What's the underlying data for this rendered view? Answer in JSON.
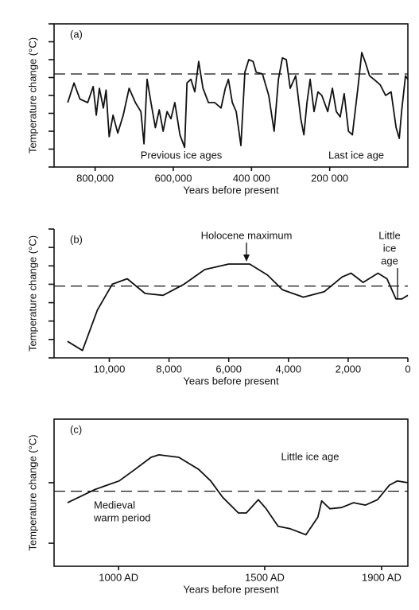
{
  "chart_data": [
    {
      "type": "line",
      "panel_label": "(a)",
      "x_label": "Years before present",
      "y_label": "Temperature change (°C)",
      "frame": true,
      "xlim": [
        905000,
        0
      ],
      "ylim": [
        0,
        8
      ],
      "xticks": [
        {
          "value": 800000,
          "label": "800,000"
        },
        {
          "value": 600000,
          "label": "600,000"
        },
        {
          "value": 400000,
          "label": "400 000"
        },
        {
          "value": 200000,
          "label": "200 000"
        }
      ],
      "yticks": [
        0,
        1,
        2,
        3,
        4,
        5,
        6,
        7,
        8
      ],
      "reference": 5.2,
      "color": "#111111",
      "annotations": [
        "Previous ice ages",
        "Last ice age"
      ],
      "x": [
        870000,
        854000,
        839000,
        819000,
        805000,
        797000,
        789000,
        779000,
        772000,
        764000,
        754000,
        742000,
        728000,
        713000,
        697000,
        683000,
        675000,
        667000,
        657000,
        646000,
        636000,
        626000,
        616000,
        606000,
        596000,
        583000,
        571000,
        565000,
        555000,
        545000,
        535000,
        524000,
        510000,
        494000,
        478000,
        467000,
        459000,
        449000,
        439000,
        427000,
        417000,
        407000,
        396000,
        388000,
        372000,
        356000,
        342000,
        331000,
        321000,
        311000,
        301000,
        287000,
        274000,
        266000,
        258000,
        250000,
        240000,
        230000,
        220000,
        205000,
        193000,
        183000,
        173000,
        163000,
        152000,
        142000,
        128000,
        118000,
        108000,
        98000,
        87000,
        71000,
        57000,
        43000,
        30000,
        22000,
        16000,
        6000,
        0
      ],
      "values": [
        3.6,
        4.7,
        3.8,
        3.6,
        4.5,
        2.9,
        4.4,
        3.3,
        4.3,
        1.7,
        2.9,
        1.9,
        2.9,
        4.4,
        3.6,
        3.1,
        1.3,
        4.9,
        3.6,
        2.2,
        3.2,
        2.0,
        3.1,
        2.7,
        3.6,
        1.8,
        1.1,
        4.7,
        4.9,
        4.2,
        5.9,
        4.4,
        3.6,
        3.6,
        3.3,
        4.4,
        4.9,
        3.6,
        3.1,
        1.2,
        5.3,
        6.0,
        5.9,
        5.3,
        5.2,
        4.0,
        2.0,
        4.9,
        6.1,
        6.0,
        4.4,
        5.1,
        2.7,
        1.8,
        3.6,
        4.9,
        3.1,
        4.2,
        4.0,
        3.1,
        4.4,
        3.1,
        2.8,
        4.1,
        2.0,
        1.8,
        4.4,
        6.4,
        5.8,
        5.1,
        4.9,
        4.6,
        4.0,
        4.2,
        2.2,
        1.6,
        3.1,
        5.1,
        4.9
      ]
    },
    {
      "type": "line",
      "panel_label": "(b)",
      "x_label": "Years before present",
      "y_label": "Temperature change (°C)",
      "frame": false,
      "xlim": [
        11850,
        0
      ],
      "ylim": [
        0,
        7
      ],
      "xticks": [
        {
          "value": 10000,
          "label": "10,000"
        },
        {
          "value": 8000,
          "label": "8,000"
        },
        {
          "value": 6000,
          "label": "6,000"
        },
        {
          "value": 4000,
          "label": "4,000"
        },
        {
          "value": 2000,
          "label": "2,000"
        },
        0
      ],
      "yticks": [
        0,
        1,
        2,
        3,
        4,
        5,
        6,
        7
      ],
      "reference": 3.9,
      "color": "#111111",
      "annotations": [
        "Holocene maximum",
        "Little",
        "ice",
        "age"
      ],
      "x": [
        11400,
        10900,
        10400,
        9900,
        9400,
        8800,
        8200,
        7500,
        6800,
        6000,
        5300,
        4700,
        4200,
        3500,
        2800,
        2200,
        1900,
        1500,
        1000,
        700,
        400,
        200,
        0
      ],
      "values": [
        0.9,
        0.4,
        2.6,
        4.0,
        4.3,
        3.5,
        3.4,
        4.0,
        4.8,
        5.1,
        5.1,
        4.5,
        3.7,
        3.3,
        3.6,
        4.4,
        4.6,
        4.1,
        4.6,
        4.3,
        3.2,
        3.2,
        3.4
      ]
    },
    {
      "type": "line",
      "panel_label": "(c)",
      "x_label": "Years before present",
      "y_label": "Temperature change (°C)",
      "frame": true,
      "xlim": [
        779,
        1990
      ],
      "ylim": [
        -0.38,
        2.05
      ],
      "xticks": [
        {
          "value": 1000,
          "label": "1000 AD"
        },
        {
          "value": 1500,
          "label": "1500 AD"
        },
        {
          "value": 1900,
          "label": "1900 AD"
        }
      ],
      "yticks": [
        0,
        1
      ],
      "reference": 0.86,
      "color": "#111111",
      "annotations": [
        "Little ice age",
        "Medieval",
        "warm period"
      ],
      "x": [
        825,
        920,
        1002,
        1056,
        1111,
        1138,
        1206,
        1274,
        1315,
        1356,
        1410,
        1437,
        1478,
        1505,
        1546,
        1587,
        1641,
        1682,
        1695,
        1723,
        1763,
        1804,
        1845,
        1886,
        1927,
        1954,
        1989
      ],
      "values": [
        0.67,
        0.89,
        1.03,
        1.22,
        1.42,
        1.46,
        1.42,
        1.22,
        1.03,
        0.76,
        0.5,
        0.5,
        0.72,
        0.57,
        0.28,
        0.24,
        0.14,
        0.43,
        0.7,
        0.57,
        0.59,
        0.67,
        0.63,
        0.72,
        0.96,
        1.03,
        1.0
      ]
    }
  ]
}
